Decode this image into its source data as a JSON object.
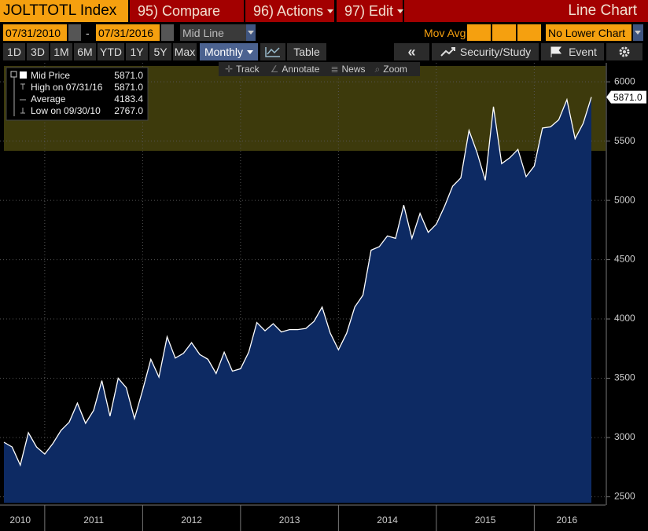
{
  "header": {
    "ticker": "JOLTTOTL Index",
    "menus": [
      "95) Compare",
      "96) Actions",
      "97) Edit"
    ],
    "view": "Line Chart"
  },
  "controls": {
    "start_date": "07/31/2010",
    "separator": "-",
    "end_date": "07/31/2016",
    "line_type": "Mid Line",
    "mov_avg": "Mov Avg",
    "lower_chart": "No Lower Chart"
  },
  "toolbar": {
    "periods": [
      "1D",
      "3D",
      "1M",
      "6M",
      "YTD",
      "1Y",
      "5Y",
      "Max"
    ],
    "frequency": "Monthly",
    "table": "Table",
    "security": "Security/Study",
    "event": "Event"
  },
  "chart_tools": [
    "Track",
    "Annotate",
    "News",
    "Zoom"
  ],
  "chart_data": {
    "type": "area",
    "name": "Mid Price",
    "color": "#0d2a63",
    "line_color": "#ffffff",
    "categories": [
      null,
      null,
      "2010",
      null,
      null,
      null,
      null,
      null,
      null,
      null,
      null,
      "2011",
      null,
      null,
      null,
      null,
      null,
      null,
      null,
      null,
      null,
      null,
      null,
      "2012",
      null,
      null,
      null,
      null,
      null,
      null,
      null,
      null,
      null,
      null,
      null,
      "2013",
      null,
      null,
      null,
      null,
      null,
      null,
      null,
      null,
      null,
      null,
      null,
      "2014",
      null,
      null,
      null,
      null,
      null,
      null,
      null,
      null,
      null,
      null,
      null,
      "2015",
      null,
      null,
      null,
      null,
      null,
      null,
      null,
      null,
      null,
      "2016",
      null,
      null,
      null
    ],
    "values": [
      2960,
      2920,
      2767,
      3040,
      2920,
      2860,
      2950,
      3060,
      3130,
      3290,
      3120,
      3230,
      3480,
      3180,
      3500,
      3420,
      3160,
      3400,
      3660,
      3510,
      3850,
      3670,
      3710,
      3800,
      3700,
      3660,
      3540,
      3720,
      3560,
      3580,
      3720,
      3970,
      3900,
      3960,
      3890,
      3910,
      3910,
      3920,
      3980,
      4100,
      3880,
      3740,
      3880,
      4100,
      4200,
      4580,
      4610,
      4700,
      4680,
      4960,
      4680,
      4890,
      4730,
      4800,
      4950,
      5120,
      5190,
      5590,
      5400,
      5170,
      5790,
      5310,
      5360,
      5430,
      5200,
      5290,
      5610,
      5620,
      5680,
      5850,
      5520,
      5650,
      5871
    ],
    "value_labels": [
      null,
      null,
      null,
      null,
      null,
      null,
      null,
      null,
      null,
      null,
      null,
      null,
      null,
      null,
      null,
      null,
      null,
      null,
      null,
      null,
      null,
      null,
      null,
      null,
      null,
      null,
      null,
      null,
      null,
      null,
      null,
      null,
      null,
      null,
      null,
      null,
      null,
      null,
      null,
      null,
      null,
      null,
      null,
      null,
      null,
      null,
      null,
      null,
      null,
      null,
      null,
      null,
      null,
      null,
      null,
      null,
      null,
      null,
      null,
      null,
      null,
      null,
      null,
      null,
      null,
      null,
      null,
      null,
      null,
      null,
      null,
      null,
      "5871.0"
    ],
    "stats": [
      {
        "label": "High on 07/31/16",
        "value": "5871.0"
      },
      {
        "label": "Average",
        "value": "4183.4"
      },
      {
        "label": "Low on 09/30/10",
        "value": "2767.0"
      }
    ],
    "ylim": [
      2450,
      6160
    ],
    "yticks": [
      2500,
      3000,
      3500,
      4000,
      4500,
      5000,
      5500,
      6000
    ],
    "grid": true
  }
}
